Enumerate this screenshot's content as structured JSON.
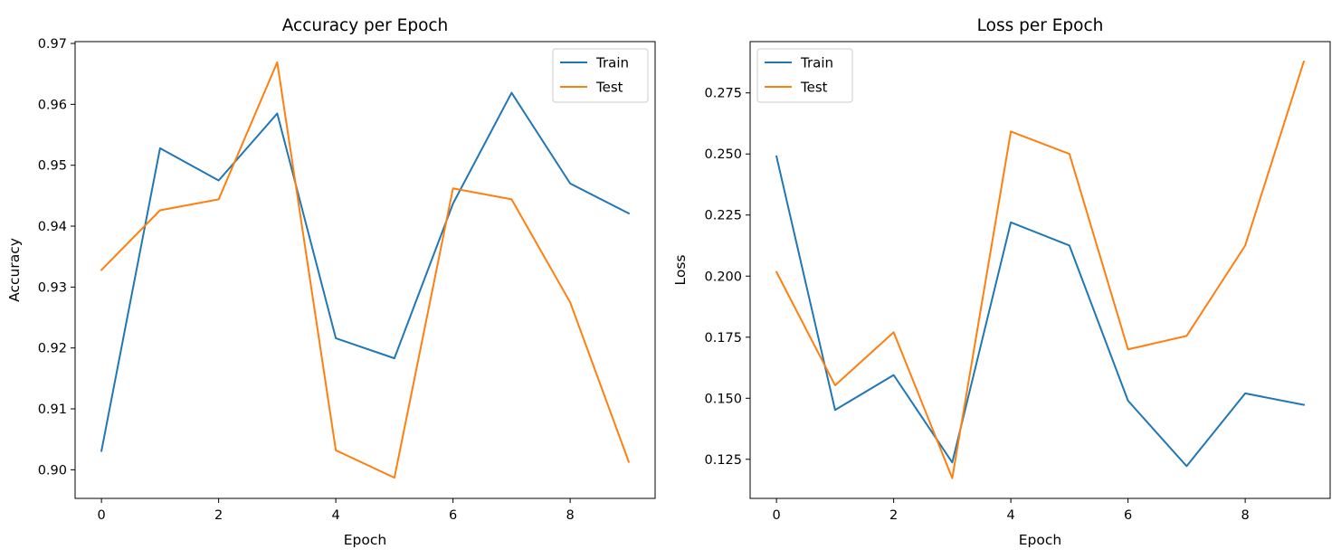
{
  "chart_data": [
    {
      "type": "line",
      "title": "Accuracy per Epoch",
      "xlabel": "Epoch",
      "ylabel": "Accuracy",
      "x": [
        0,
        1,
        2,
        3,
        4,
        5,
        6,
        7,
        8,
        9
      ],
      "xlim": [
        -0.45,
        9.45
      ],
      "ylim": [
        0.8953,
        0.9703
      ],
      "xticks": [
        0,
        2,
        4,
        6,
        8
      ],
      "yticks": [
        0.9,
        0.91,
        0.92,
        0.93,
        0.94,
        0.95,
        0.96,
        0.97
      ],
      "ytick_labels": [
        "0.90",
        "0.91",
        "0.92",
        "0.93",
        "0.94",
        "0.95",
        "0.96",
        "0.97"
      ],
      "grid": false,
      "legend_position": "upper right",
      "series": [
        {
          "name": "Train",
          "color": "#1f77b4",
          "values": [
            0.9031,
            0.9528,
            0.9475,
            0.9585,
            0.9216,
            0.9183,
            0.9437,
            0.9619,
            0.947,
            0.9421
          ]
        },
        {
          "name": "Test",
          "color": "#ff7f0e",
          "values": [
            0.9328,
            0.9426,
            0.9444,
            0.9669,
            0.9032,
            0.8987,
            0.9462,
            0.9444,
            0.9275,
            0.9013
          ]
        }
      ]
    },
    {
      "type": "line",
      "title": "Loss per Epoch",
      "xlabel": "Epoch",
      "ylabel": "Loss",
      "x": [
        0,
        1,
        2,
        3,
        4,
        5,
        6,
        7,
        8,
        9
      ],
      "xlim": [
        -0.45,
        9.45
      ],
      "ylim": [
        0.109,
        0.296
      ],
      "xticks": [
        0,
        2,
        4,
        6,
        8
      ],
      "yticks": [
        0.125,
        0.15,
        0.175,
        0.2,
        0.225,
        0.25,
        0.275
      ],
      "ytick_labels": [
        "0.125",
        "0.150",
        "0.175",
        "0.200",
        "0.225",
        "0.250",
        "0.275"
      ],
      "grid": false,
      "legend_position": "upper left",
      "series": [
        {
          "name": "Train",
          "color": "#1f77b4",
          "values": [
            0.249,
            0.1452,
            0.1595,
            0.1237,
            0.222,
            0.2125,
            0.149,
            0.1222,
            0.152,
            0.1473
          ]
        },
        {
          "name": "Test",
          "color": "#ff7f0e",
          "values": [
            0.2017,
            0.1553,
            0.177,
            0.1173,
            0.2592,
            0.25,
            0.17,
            0.1755,
            0.2125,
            0.2878
          ]
        }
      ]
    }
  ]
}
